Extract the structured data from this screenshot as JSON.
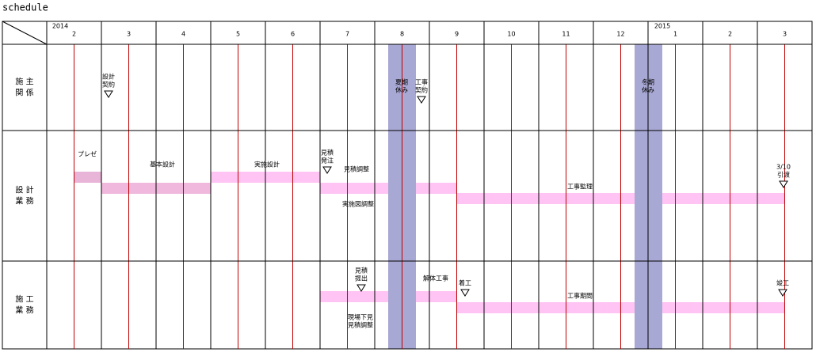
{
  "header": {
    "title": "schedule"
  },
  "years": [
    "2014",
    "2015"
  ],
  "months": [
    "2",
    "3",
    "4",
    "5",
    "6",
    "7",
    "8",
    "9",
    "10",
    "11",
    "12",
    "1",
    "2",
    "3"
  ],
  "rows": [
    {
      "label": [
        "施 主",
        "関 係"
      ],
      "notes": [
        [
          "設計",
          "契約"
        ],
        [
          "夏期",
          "休み"
        ],
        [
          "工事",
          "契約"
        ],
        [
          "冬期",
          "休み"
        ]
      ]
    },
    {
      "label": [
        "設 計",
        "業 務"
      ],
      "notes": [
        [
          "プレゼ"
        ],
        [
          "基本設計"
        ],
        [
          "実施設計"
        ],
        [
          "見積",
          "発注"
        ],
        [
          "見積調整"
        ],
        [
          "実施図調整"
        ],
        [
          "工事監理"
        ],
        [
          "3/10",
          "引渡"
        ]
      ]
    },
    {
      "label": [
        "施 工",
        "業 務"
      ],
      "notes": [
        [
          "見積",
          "提出"
        ],
        [
          "解体工事"
        ],
        [
          "着工"
        ],
        [
          "工事期間"
        ],
        [
          "現場下見",
          "見積調整"
        ],
        [
          "竣工"
        ]
      ]
    }
  ]
}
